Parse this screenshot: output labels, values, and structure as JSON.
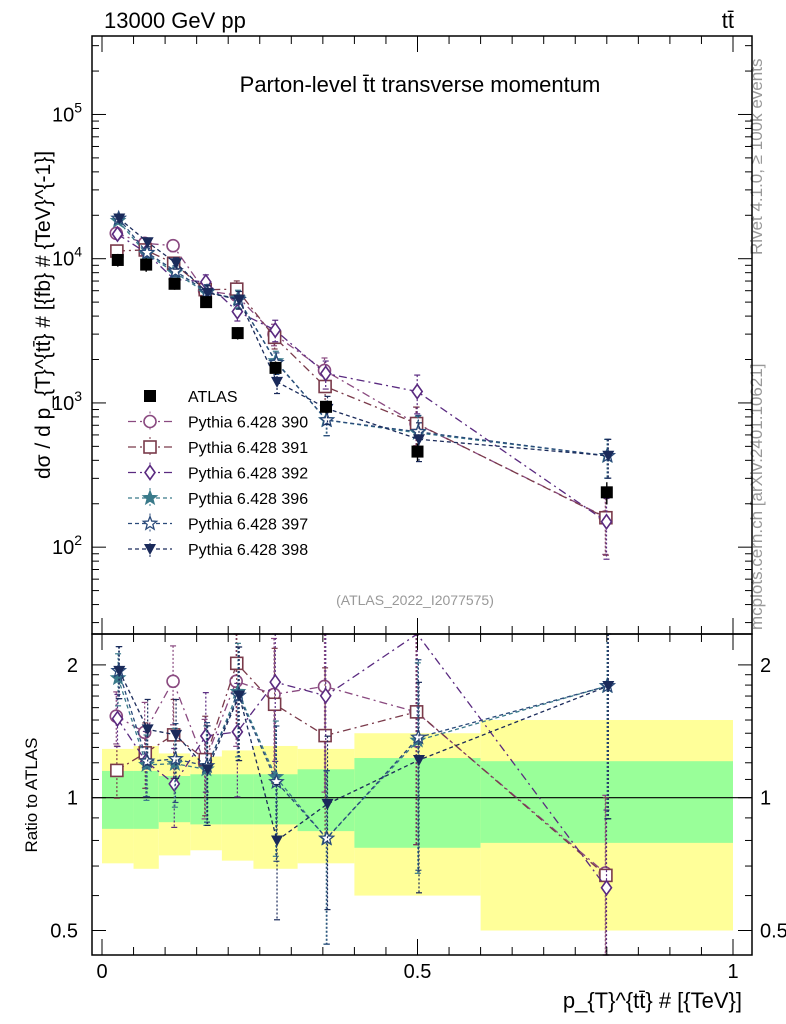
{
  "header": {
    "energy_label": "13000 GeV pp",
    "process_label": "tt̄",
    "rivet_label": "Rivet 4.1.0, ≥ 100k events",
    "source_label": "mcplots.cern.ch [arXiv:2401.10621]"
  },
  "chart_data": [
    {
      "type": "scatter",
      "panel": "main",
      "title": "Parton-level t̄t transverse momentum",
      "analysis_label": "(ATLAS_2022_I2077575)",
      "ylabel": "dσ / d p_{T}^{tt̄} # [{fb} # {TeV}^{-1}]",
      "xlabel": "p_{T}^{tt̄} # [{TeV}]",
      "xlim": [
        0,
        1
      ],
      "ylim": [
        25,
        350000
      ],
      "yscale": "log",
      "ytick_labels": [
        "10^{2}",
        "10^{3}",
        "10^{4}",
        "10^{5}"
      ],
      "xtick_labels": [
        "0",
        "0.5",
        "1"
      ],
      "bins": [
        [
          0.0,
          0.05
        ],
        [
          0.05,
          0.09
        ],
        [
          0.09,
          0.14
        ],
        [
          0.14,
          0.19
        ],
        [
          0.19,
          0.24
        ],
        [
          0.24,
          0.31
        ],
        [
          0.31,
          0.4
        ],
        [
          0.4,
          0.6
        ],
        [
          0.6,
          1.0
        ]
      ],
      "x": [
        0.025,
        0.07,
        0.115,
        0.165,
        0.215,
        0.275,
        0.355,
        0.5,
        0.8
      ],
      "data": {
        "name": "ATLAS",
        "values": [
          9800,
          9100,
          6700,
          5000,
          3050,
          1750,
          940,
          460,
          240
        ],
        "rel_unc": [
          0.29,
          0.31,
          0.26,
          0.24,
          0.28,
          0.31,
          0.29,
          0.4,
          0.5
        ],
        "rel_unc_stat": [
          0.15,
          0.15,
          0.12,
          0.13,
          0.13,
          0.13,
          0.16,
          0.23,
          0.21
        ]
      },
      "series": [
        {
          "name": "Pythia 6.428 390",
          "color": "#8a4a80",
          "marker": "circle-open",
          "dash": "8,4,2,4",
          "values": [
            15000,
            12800,
            12300,
            6000,
            5600,
            3000,
            1680,
            720,
            162
          ],
          "rel_err": [
            0.05,
            0.07,
            0.09,
            0.12,
            0.14,
            0.17,
            0.22,
            0.3,
            0.45
          ]
        },
        {
          "name": "Pythia 6.428 391",
          "color": "#7a3a4a",
          "marker": "square-open",
          "dash": "8,4,2,4",
          "values": [
            11300,
            11500,
            9300,
            6100,
            6150,
            2850,
            1300,
            720,
            160
          ],
          "rel_err": [
            0.05,
            0.07,
            0.09,
            0.12,
            0.14,
            0.17,
            0.22,
            0.3,
            0.45
          ]
        },
        {
          "name": "Pythia 6.428 392",
          "color": "#5a2a80",
          "marker": "diamond-open",
          "dash": "8,4,2,4",
          "values": [
            14800,
            11000,
            7200,
            6900,
            4300,
            3200,
            1600,
            1200,
            150
          ],
          "rel_err": [
            0.05,
            0.07,
            0.09,
            0.12,
            0.14,
            0.17,
            0.22,
            0.3,
            0.45
          ]
        },
        {
          "name": "Pythia 6.428 396",
          "color": "#3a7a8a",
          "marker": "star-filled",
          "dash": "4,3",
          "values": [
            18300,
            10800,
            8000,
            5800,
            5300,
            1950,
            760,
            620,
            430
          ],
          "rel_err": [
            0.05,
            0.07,
            0.09,
            0.12,
            0.14,
            0.17,
            0.22,
            0.3,
            0.3
          ]
        },
        {
          "name": "Pythia 6.428 397",
          "color": "#2a4a7a",
          "marker": "star-open",
          "dash": "4,3",
          "values": [
            19000,
            11000,
            8200,
            5900,
            5200,
            1900,
            760,
            630,
            430
          ],
          "rel_err": [
            0.05,
            0.07,
            0.09,
            0.12,
            0.14,
            0.17,
            0.22,
            0.3,
            0.3
          ]
        },
        {
          "name": "Pythia 6.428 398",
          "color": "#1a2a5a",
          "marker": "triangle-down-filled",
          "dash": "4,3",
          "values": [
            19000,
            13000,
            9300,
            5800,
            5200,
            1400,
            910,
            560,
            430
          ],
          "rel_err": [
            0.05,
            0.07,
            0.09,
            0.12,
            0.14,
            0.17,
            0.22,
            0.3,
            0.3
          ]
        }
      ]
    },
    {
      "type": "scatter",
      "panel": "ratio",
      "ylabel": "Ratio to ATLAS",
      "yscale": "log",
      "ylim": [
        0.44,
        2.35
      ],
      "reference": 1,
      "ytick_labels": [
        "0.5",
        "1",
        "2"
      ],
      "note": "Each model divided by ATLAS; green band = statistical uncertainty, yellow band = total uncertainty."
    }
  ]
}
